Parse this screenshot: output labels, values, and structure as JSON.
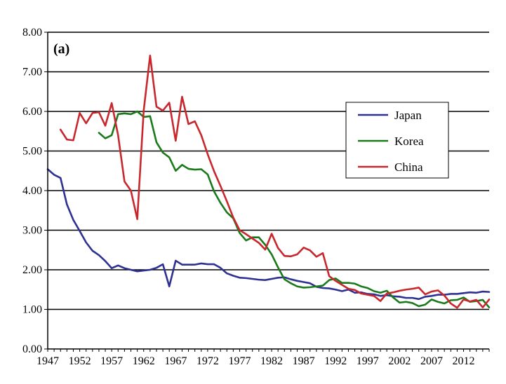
{
  "chart_data": {
    "type": "line",
    "panel_label": "(a)",
    "title": "",
    "xlabel": "",
    "ylabel": "",
    "xlim": [
      1947,
      2016
    ],
    "ylim": [
      0,
      8
    ],
    "grid": "horizontal",
    "legend_position": "right",
    "y_ticks": [
      "0.00",
      "1.00",
      "2.00",
      "3.00",
      "4.00",
      "5.00",
      "6.00",
      "7.00",
      "8.00"
    ],
    "x_ticks": [
      "1947",
      "1952",
      "1957",
      "1962",
      "1967",
      "1972",
      "1977",
      "1982",
      "1987",
      "1992",
      "1997",
      "2002",
      "2007",
      "2012"
    ],
    "series": [
      {
        "name": "Japan",
        "color": "#2e3192",
        "x": [
          1947,
          1948,
          1949,
          1950,
          1951,
          1952,
          1953,
          1954,
          1955,
          1956,
          1957,
          1958,
          1959,
          1960,
          1961,
          1962,
          1963,
          1964,
          1965,
          1966,
          1967,
          1968,
          1969,
          1970,
          1971,
          1972,
          1973,
          1974,
          1975,
          1976,
          1977,
          1978,
          1979,
          1980,
          1981,
          1982,
          1983,
          1984,
          1985,
          1986,
          1987,
          1988,
          1989,
          1990,
          1991,
          1992,
          1993,
          1994,
          1995,
          1996,
          1997,
          1998,
          1999,
          2000,
          2001,
          2002,
          2003,
          2004,
          2005,
          2006,
          2007,
          2008,
          2009,
          2010,
          2011,
          2012,
          2013,
          2014,
          2015,
          2016
        ],
        "values": [
          4.54,
          4.4,
          4.32,
          3.65,
          3.26,
          2.98,
          2.69,
          2.48,
          2.37,
          2.22,
          2.04,
          2.11,
          2.04,
          2.0,
          1.96,
          1.98,
          2.0,
          2.05,
          2.14,
          1.58,
          2.23,
          2.13,
          2.13,
          2.13,
          2.16,
          2.14,
          2.14,
          2.05,
          1.91,
          1.85,
          1.8,
          1.79,
          1.77,
          1.75,
          1.74,
          1.77,
          1.8,
          1.81,
          1.76,
          1.72,
          1.69,
          1.66,
          1.57,
          1.54,
          1.53,
          1.5,
          1.46,
          1.5,
          1.42,
          1.43,
          1.39,
          1.38,
          1.34,
          1.36,
          1.33,
          1.32,
          1.29,
          1.29,
          1.26,
          1.32,
          1.34,
          1.37,
          1.37,
          1.39,
          1.39,
          1.41,
          1.43,
          1.42,
          1.45,
          1.44
        ]
      },
      {
        "name": "Korea",
        "color": "#1a7a1a",
        "x": [
          1955,
          1956,
          1957,
          1958,
          1959,
          1960,
          1961,
          1962,
          1963,
          1964,
          1965,
          1966,
          1967,
          1968,
          1969,
          1970,
          1971,
          1972,
          1973,
          1974,
          1975,
          1976,
          1977,
          1978,
          1979,
          1980,
          1981,
          1982,
          1983,
          1984,
          1985,
          1986,
          1987,
          1988,
          1989,
          1990,
          1991,
          1992,
          1993,
          1994,
          1995,
          1996,
          1997,
          1998,
          1999,
          2000,
          2001,
          2002,
          2003,
          2004,
          2005,
          2006,
          2007,
          2008,
          2009,
          2010,
          2011,
          2012,
          2013,
          2014,
          2015,
          2016
        ],
        "values": [
          5.46,
          5.32,
          5.4,
          5.93,
          5.95,
          5.93,
          6.0,
          5.86,
          5.88,
          5.22,
          4.96,
          4.84,
          4.5,
          4.65,
          4.55,
          4.53,
          4.54,
          4.41,
          3.98,
          3.69,
          3.45,
          3.3,
          2.93,
          2.74,
          2.82,
          2.82,
          2.63,
          2.39,
          2.06,
          1.76,
          1.66,
          1.58,
          1.55,
          1.56,
          1.58,
          1.6,
          1.74,
          1.78,
          1.67,
          1.67,
          1.65,
          1.58,
          1.54,
          1.46,
          1.42,
          1.47,
          1.3,
          1.17,
          1.19,
          1.16,
          1.08,
          1.12,
          1.25,
          1.19,
          1.15,
          1.23,
          1.24,
          1.3,
          1.19,
          1.21,
          1.24,
          1.05
        ]
      },
      {
        "name": "China",
        "color": "#c8282d",
        "x": [
          1949,
          1950,
          1951,
          1952,
          1953,
          1954,
          1955,
          1956,
          1957,
          1958,
          1959,
          1960,
          1961,
          1962,
          1963,
          1964,
          1965,
          1966,
          1967,
          1968,
          1969,
          1970,
          1971,
          1972,
          1973,
          1974,
          1975,
          1976,
          1977,
          1978,
          1979,
          1980,
          1981,
          1982,
          1983,
          1984,
          1985,
          1986,
          1987,
          1988,
          1989,
          1990,
          1991,
          1992,
          1993,
          1994,
          1995,
          1996,
          1997,
          1998,
          1999,
          2000,
          2001,
          2002,
          2003,
          2004,
          2005,
          2006,
          2007,
          2008,
          2009,
          2010,
          2011,
          2012,
          2013,
          2014,
          2015,
          2016
        ],
        "values": [
          5.54,
          5.29,
          5.27,
          5.96,
          5.7,
          5.96,
          5.98,
          5.64,
          6.21,
          5.4,
          4.23,
          4.0,
          3.28,
          6.02,
          7.41,
          6.12,
          6.02,
          6.22,
          5.26,
          6.37,
          5.68,
          5.75,
          5.4,
          4.92,
          4.49,
          4.12,
          3.73,
          3.32,
          3.0,
          2.9,
          2.79,
          2.68,
          2.51,
          2.91,
          2.55,
          2.35,
          2.34,
          2.39,
          2.56,
          2.49,
          2.33,
          2.42,
          1.84,
          1.72,
          1.62,
          1.52,
          1.49,
          1.4,
          1.37,
          1.34,
          1.21,
          1.4,
          1.43,
          1.47,
          1.5,
          1.52,
          1.55,
          1.38,
          1.45,
          1.48,
          1.35,
          1.15,
          1.04,
          1.25,
          1.2,
          1.24,
          1.05,
          1.25
        ]
      }
    ]
  }
}
